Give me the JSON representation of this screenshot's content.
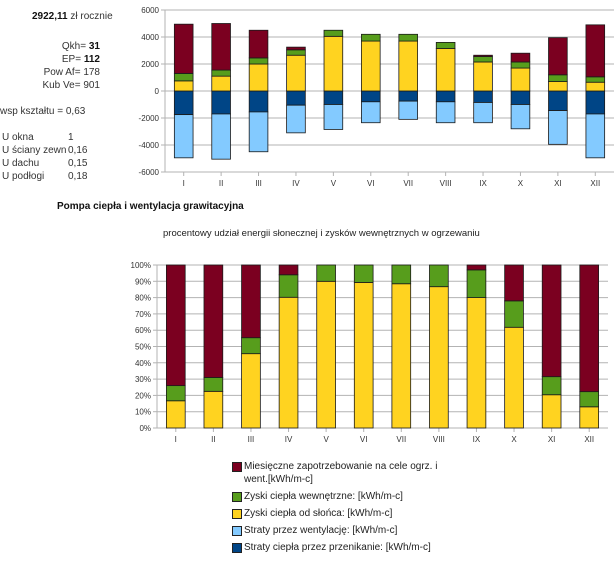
{
  "summary": {
    "cost_value": "2922,11",
    "cost_unit": "zł rocznie",
    "qkh_label": "Qkh=",
    "qkh_value": "31",
    "ep_label": "EP=",
    "ep_value": "112",
    "pow_label": "Pow Af=",
    "pow_value": "178",
    "kub_label": "Kub Ve=",
    "kub_value": "901",
    "wsp_label": "wsp kształtu =",
    "wsp_value": "0,63",
    "u_values": [
      {
        "label": "U okna",
        "value": "1"
      },
      {
        "label": "U ściany zewn",
        "value": "0,16"
      },
      {
        "label": "U dachu",
        "value": "0,15"
      },
      {
        "label": "U podłogi",
        "value": "0,18"
      }
    ]
  },
  "section_title": "Pompa ciepła i wentylacja grawitacyjna",
  "colors": {
    "demand": "#7b0020",
    "internal": "#579d1c",
    "solar": "#ffd320",
    "ventilation": "#83caff",
    "transmission": "#004586"
  },
  "chart_data": [
    {
      "type": "bar",
      "stacked": true,
      "title": "",
      "xlabel": "",
      "ylabel": "",
      "categories": [
        "I",
        "II",
        "III",
        "IV",
        "V",
        "VI",
        "VII",
        "VIII",
        "IX",
        "X",
        "XI",
        "XII"
      ],
      "ylim": [
        -6000,
        6000
      ],
      "yticks": [
        6000,
        4000,
        2000,
        0,
        -2000,
        -4000,
        -6000
      ],
      "ytick_labels": [
        "6000",
        "4000",
        "2000",
        "0",
        "-2000",
        "-4000",
        "-6000"
      ],
      "grid": true,
      "series": [
        {
          "name": "Straty ciepła przez przenikanie",
          "key": "transmission",
          "values": [
            -1750,
            -1700,
            -1550,
            -1050,
            -1000,
            -800,
            -750,
            -800,
            -850,
            -1000,
            -1450,
            -1700
          ]
        },
        {
          "name": "Straty przez wentylację",
          "key": "ventilation",
          "values": [
            -3200,
            -3350,
            -2950,
            -2050,
            -1850,
            -1550,
            -1350,
            -1550,
            -1500,
            -1800,
            -2500,
            -3250
          ]
        },
        {
          "name": "Zyski ciepła od słońca",
          "key": "solar",
          "values": [
            750,
            1100,
            2000,
            2650,
            4050,
            3700,
            3700,
            3150,
            2150,
            1700,
            700,
            650
          ]
        },
        {
          "name": "Zyski ciepła wewnętrzne",
          "key": "internal",
          "values": [
            550,
            450,
            450,
            400,
            450,
            500,
            500,
            450,
            400,
            450,
            500,
            400
          ]
        },
        {
          "name": "Miesięczne zapotrzebowanie na cele ogrz. i went.",
          "key": "demand",
          "values": [
            3650,
            3450,
            2050,
            200,
            0,
            0,
            0,
            0,
            100,
            650,
            2750,
            3850
          ]
        }
      ]
    },
    {
      "type": "bar",
      "stacked": true,
      "percent": true,
      "title": "procentowy udział energii słonecznej i zysków wewnętrznych w ogrzewaniu",
      "xlabel": "",
      "ylabel": "",
      "categories": [
        "I",
        "II",
        "III",
        "IV",
        "V",
        "VI",
        "VII",
        "VIII",
        "IX",
        "X",
        "XI",
        "XII"
      ],
      "ylim": [
        0,
        100
      ],
      "yticks": [
        0,
        10,
        20,
        30,
        40,
        50,
        60,
        70,
        80,
        90,
        100
      ],
      "ytick_labels": [
        "0%",
        "10%",
        "20%",
        "30%",
        "40%",
        "50%",
        "60%",
        "70%",
        "80%",
        "90%",
        "100%"
      ],
      "grid": true,
      "series": [
        {
          "name": "Zyski ciepła od słońca: [kWh/m-c]",
          "key": "solar",
          "values": [
            16.7,
            22.5,
            45.6,
            80.2,
            90,
            89.3,
            88.5,
            86.7,
            80,
            61.8,
            20.4,
            13
          ]
        },
        {
          "name": "Zyski ciepła wewnętrzne: [kWh/m-c]",
          "key": "internal",
          "values": [
            9.3,
            8.5,
            9.8,
            13.8,
            10,
            10.7,
            11.5,
            13.3,
            17,
            16.2,
            11.1,
            9.3
          ]
        },
        {
          "name": "Miesięczne zapotrzebowanie na cele ogrz. i went.[kWh/m-c]",
          "key": "demand",
          "values": [
            74,
            69,
            44.6,
            6,
            0,
            0,
            0,
            0,
            3,
            22,
            68.5,
            77.7
          ]
        }
      ],
      "legend_position": "bottom"
    }
  ],
  "legend": [
    {
      "key": "demand",
      "label": "Miesięczne zapotrzebowanie na cele ogrz. i went.[kWh/m-c]"
    },
    {
      "key": "internal",
      "label": "Zyski ciepła wewnętrzne: [kWh/m-c]"
    },
    {
      "key": "solar",
      "label": "Zyski ciepła od słońca: [kWh/m-c]"
    },
    {
      "key": "ventilation",
      "label": "Straty przez wentylację: [kWh/m-c]"
    },
    {
      "key": "transmission",
      "label": "Straty  ciepła przez przenikanie: [kWh/m-c]"
    }
  ]
}
